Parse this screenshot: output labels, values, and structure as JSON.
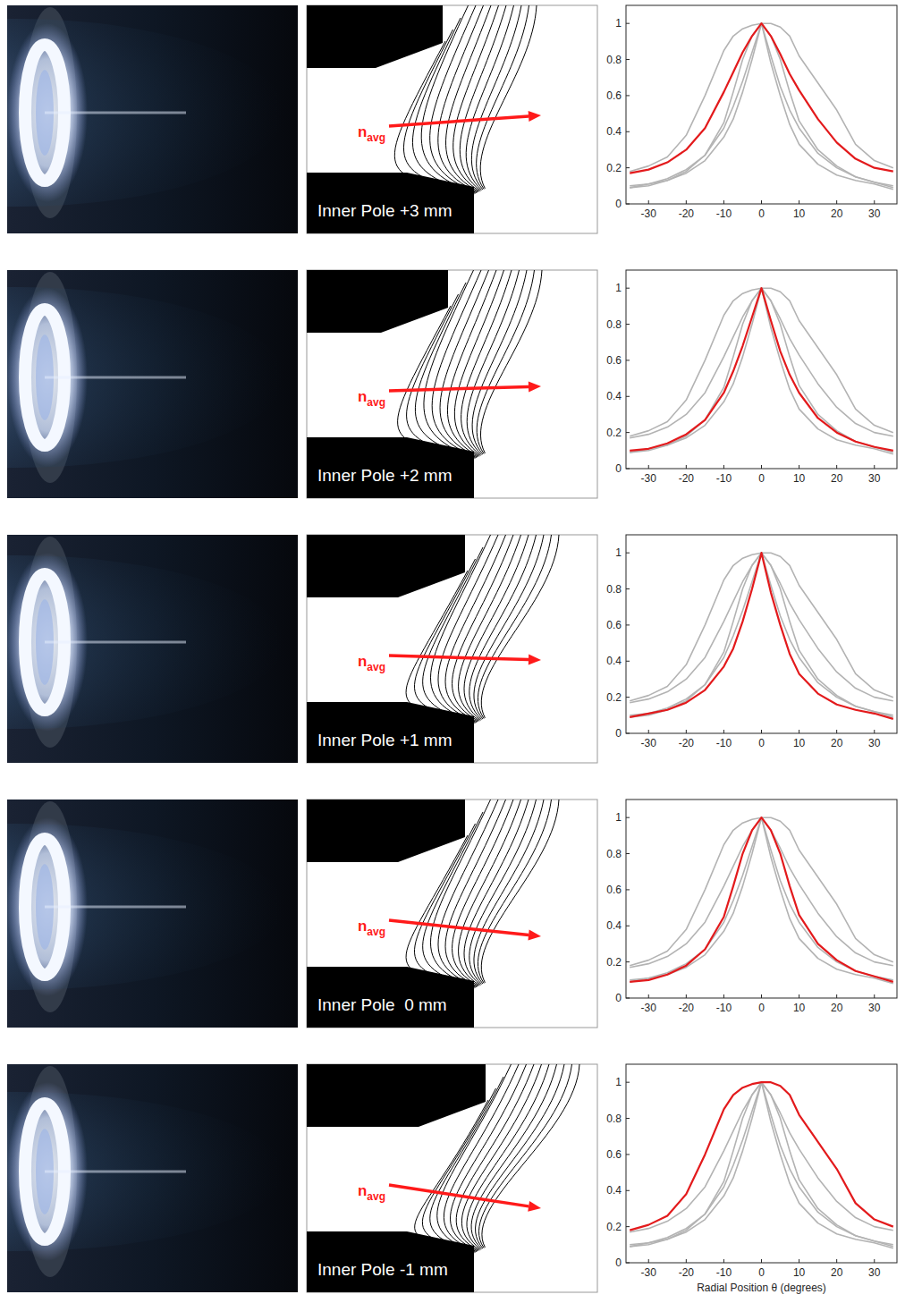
{
  "diagrams": [
    {
      "label": "Inner Pole +3 mm",
      "vector_label": {
        "base": "n",
        "subscript": "avg"
      }
    },
    {
      "label": "Inner Pole +2 mm",
      "vector_label": {
        "base": "n",
        "subscript": "avg"
      }
    },
    {
      "label": "Inner Pole +1 mm",
      "vector_label": {
        "base": "n",
        "subscript": "avg"
      }
    },
    {
      "label": "Inner Pole  0 mm",
      "vector_label": {
        "base": "n",
        "subscript": "avg"
      }
    },
    {
      "label": "Inner Pole -1 mm",
      "vector_label": {
        "base": "n",
        "subscript": "avg"
      }
    }
  ],
  "chart_data": [
    {
      "type": "line",
      "x": [
        -35,
        -30,
        -25,
        -20,
        -15,
        -10,
        -7.5,
        -5,
        -2.5,
        0,
        2.5,
        5,
        7.5,
        10,
        15,
        20,
        25,
        30,
        35
      ],
      "xlim": [
        -36,
        36
      ],
      "xticks": [
        -30,
        -20,
        -10,
        0,
        10,
        20,
        30
      ],
      "ylim": [
        0,
        1.1
      ],
      "yticks": [
        0,
        0.2,
        0.4,
        0.6,
        0.8,
        1
      ],
      "series": [
        {
          "color": "#b3b3b3",
          "values": [
            0.1,
            0.11,
            0.14,
            0.19,
            0.27,
            0.42,
            0.54,
            0.68,
            0.84,
            1,
            0.82,
            0.65,
            0.52,
            0.42,
            0.28,
            0.2,
            0.15,
            0.12,
            0.1
          ]
        },
        {
          "color": "#b3b3b3",
          "values": [
            0.09,
            0.11,
            0.13,
            0.17,
            0.24,
            0.37,
            0.47,
            0.62,
            0.8,
            1,
            0.78,
            0.6,
            0.44,
            0.33,
            0.22,
            0.16,
            0.13,
            0.11,
            0.08
          ]
        },
        {
          "color": "#b3b3b3",
          "values": [
            0.09,
            0.1,
            0.13,
            0.18,
            0.27,
            0.45,
            0.62,
            0.8,
            0.93,
            1,
            0.93,
            0.8,
            0.62,
            0.46,
            0.3,
            0.21,
            0.15,
            0.12,
            0.09
          ]
        },
        {
          "color": "#b3b3b3",
          "values": [
            0.18,
            0.21,
            0.26,
            0.38,
            0.6,
            0.85,
            0.93,
            0.97,
            0.99,
            1,
            1,
            0.98,
            0.93,
            0.82,
            0.67,
            0.52,
            0.33,
            0.24,
            0.2
          ]
        },
        {
          "color": "#e31a1c",
          "values": [
            0.17,
            0.19,
            0.23,
            0.3,
            0.42,
            0.62,
            0.73,
            0.84,
            0.93,
            1,
            0.93,
            0.83,
            0.72,
            0.63,
            0.47,
            0.34,
            0.25,
            0.2,
            0.18
          ]
        }
      ]
    },
    {
      "type": "line",
      "x": [
        -35,
        -30,
        -25,
        -20,
        -15,
        -10,
        -7.5,
        -5,
        -2.5,
        0,
        2.5,
        5,
        7.5,
        10,
        15,
        20,
        25,
        30,
        35
      ],
      "xlim": [
        -36,
        36
      ],
      "xticks": [
        -30,
        -20,
        -10,
        0,
        10,
        20,
        30
      ],
      "ylim": [
        0,
        1.1
      ],
      "yticks": [
        0,
        0.2,
        0.4,
        0.6,
        0.8,
        1
      ],
      "series": [
        {
          "color": "#b3b3b3",
          "values": [
            0.17,
            0.19,
            0.23,
            0.3,
            0.42,
            0.62,
            0.73,
            0.84,
            0.93,
            1,
            0.93,
            0.83,
            0.72,
            0.63,
            0.47,
            0.34,
            0.25,
            0.2,
            0.18
          ]
        },
        {
          "color": "#b3b3b3",
          "values": [
            0.09,
            0.11,
            0.13,
            0.17,
            0.24,
            0.37,
            0.47,
            0.62,
            0.8,
            1,
            0.78,
            0.6,
            0.44,
            0.33,
            0.22,
            0.16,
            0.13,
            0.11,
            0.08
          ]
        },
        {
          "color": "#b3b3b3",
          "values": [
            0.09,
            0.1,
            0.13,
            0.18,
            0.27,
            0.45,
            0.62,
            0.8,
            0.93,
            1,
            0.93,
            0.8,
            0.62,
            0.46,
            0.3,
            0.21,
            0.15,
            0.12,
            0.09
          ]
        },
        {
          "color": "#b3b3b3",
          "values": [
            0.18,
            0.21,
            0.26,
            0.38,
            0.6,
            0.85,
            0.93,
            0.97,
            0.99,
            1,
            1,
            0.98,
            0.93,
            0.82,
            0.67,
            0.52,
            0.33,
            0.24,
            0.2
          ]
        },
        {
          "color": "#e31a1c",
          "values": [
            0.1,
            0.11,
            0.14,
            0.19,
            0.27,
            0.42,
            0.54,
            0.68,
            0.84,
            1,
            0.82,
            0.65,
            0.52,
            0.42,
            0.28,
            0.2,
            0.15,
            0.12,
            0.1
          ]
        }
      ]
    },
    {
      "type": "line",
      "x": [
        -35,
        -30,
        -25,
        -20,
        -15,
        -10,
        -7.5,
        -5,
        -2.5,
        0,
        2.5,
        5,
        7.5,
        10,
        15,
        20,
        25,
        30,
        35
      ],
      "xlim": [
        -36,
        36
      ],
      "xticks": [
        -30,
        -20,
        -10,
        0,
        10,
        20,
        30
      ],
      "ylim": [
        0,
        1.1
      ],
      "yticks": [
        0,
        0.2,
        0.4,
        0.6,
        0.8,
        1
      ],
      "series": [
        {
          "color": "#b3b3b3",
          "values": [
            0.17,
            0.19,
            0.23,
            0.3,
            0.42,
            0.62,
            0.73,
            0.84,
            0.93,
            1,
            0.93,
            0.83,
            0.72,
            0.63,
            0.47,
            0.34,
            0.25,
            0.2,
            0.18
          ]
        },
        {
          "color": "#b3b3b3",
          "values": [
            0.1,
            0.11,
            0.14,
            0.19,
            0.27,
            0.42,
            0.54,
            0.68,
            0.84,
            1,
            0.82,
            0.65,
            0.52,
            0.42,
            0.28,
            0.2,
            0.15,
            0.12,
            0.1
          ]
        },
        {
          "color": "#b3b3b3",
          "values": [
            0.09,
            0.1,
            0.13,
            0.18,
            0.27,
            0.45,
            0.62,
            0.8,
            0.93,
            1,
            0.93,
            0.8,
            0.62,
            0.46,
            0.3,
            0.21,
            0.15,
            0.12,
            0.09
          ]
        },
        {
          "color": "#b3b3b3",
          "values": [
            0.18,
            0.21,
            0.26,
            0.38,
            0.6,
            0.85,
            0.93,
            0.97,
            0.99,
            1,
            1,
            0.98,
            0.93,
            0.82,
            0.67,
            0.52,
            0.33,
            0.24,
            0.2
          ]
        },
        {
          "color": "#e31a1c",
          "values": [
            0.09,
            0.11,
            0.13,
            0.17,
            0.24,
            0.37,
            0.47,
            0.62,
            0.8,
            1,
            0.78,
            0.6,
            0.44,
            0.33,
            0.22,
            0.16,
            0.13,
            0.11,
            0.08
          ]
        }
      ]
    },
    {
      "type": "line",
      "x": [
        -35,
        -30,
        -25,
        -20,
        -15,
        -10,
        -7.5,
        -5,
        -2.5,
        0,
        2.5,
        5,
        7.5,
        10,
        15,
        20,
        25,
        30,
        35
      ],
      "xlim": [
        -36,
        36
      ],
      "xticks": [
        -30,
        -20,
        -10,
        0,
        10,
        20,
        30
      ],
      "ylim": [
        0,
        1.1
      ],
      "yticks": [
        0,
        0.2,
        0.4,
        0.6,
        0.8,
        1
      ],
      "series": [
        {
          "color": "#b3b3b3",
          "values": [
            0.17,
            0.19,
            0.23,
            0.3,
            0.42,
            0.62,
            0.73,
            0.84,
            0.93,
            1,
            0.93,
            0.83,
            0.72,
            0.63,
            0.47,
            0.34,
            0.25,
            0.2,
            0.18
          ]
        },
        {
          "color": "#b3b3b3",
          "values": [
            0.1,
            0.11,
            0.14,
            0.19,
            0.27,
            0.42,
            0.54,
            0.68,
            0.84,
            1,
            0.82,
            0.65,
            0.52,
            0.42,
            0.28,
            0.2,
            0.15,
            0.12,
            0.1
          ]
        },
        {
          "color": "#b3b3b3",
          "values": [
            0.09,
            0.11,
            0.13,
            0.17,
            0.24,
            0.37,
            0.47,
            0.62,
            0.8,
            1,
            0.78,
            0.6,
            0.44,
            0.33,
            0.22,
            0.16,
            0.13,
            0.11,
            0.08
          ]
        },
        {
          "color": "#b3b3b3",
          "values": [
            0.18,
            0.21,
            0.26,
            0.38,
            0.6,
            0.85,
            0.93,
            0.97,
            0.99,
            1,
            1,
            0.98,
            0.93,
            0.82,
            0.67,
            0.52,
            0.33,
            0.24,
            0.2
          ]
        },
        {
          "color": "#e31a1c",
          "values": [
            0.09,
            0.1,
            0.13,
            0.18,
            0.27,
            0.45,
            0.62,
            0.8,
            0.93,
            1,
            0.93,
            0.8,
            0.62,
            0.46,
            0.3,
            0.21,
            0.15,
            0.12,
            0.09
          ]
        }
      ]
    },
    {
      "type": "line",
      "x": [
        -35,
        -30,
        -25,
        -20,
        -15,
        -10,
        -7.5,
        -5,
        -2.5,
        0,
        2.5,
        5,
        7.5,
        10,
        15,
        20,
        25,
        30,
        35
      ],
      "xlim": [
        -36,
        36
      ],
      "xticks": [
        -30,
        -20,
        -10,
        0,
        10,
        20,
        30
      ],
      "ylim": [
        0,
        1.1
      ],
      "yticks": [
        0,
        0.2,
        0.4,
        0.6,
        0.8,
        1
      ],
      "x_label": "Radial Position θ (degrees)",
      "series": [
        {
          "color": "#b3b3b3",
          "values": [
            0.17,
            0.19,
            0.23,
            0.3,
            0.42,
            0.62,
            0.73,
            0.84,
            0.93,
            1,
            0.93,
            0.83,
            0.72,
            0.63,
            0.47,
            0.34,
            0.25,
            0.2,
            0.18
          ]
        },
        {
          "color": "#b3b3b3",
          "values": [
            0.1,
            0.11,
            0.14,
            0.19,
            0.27,
            0.42,
            0.54,
            0.68,
            0.84,
            1,
            0.82,
            0.65,
            0.52,
            0.42,
            0.28,
            0.2,
            0.15,
            0.12,
            0.1
          ]
        },
        {
          "color": "#b3b3b3",
          "values": [
            0.09,
            0.11,
            0.13,
            0.17,
            0.24,
            0.37,
            0.47,
            0.62,
            0.8,
            1,
            0.78,
            0.6,
            0.44,
            0.33,
            0.22,
            0.16,
            0.13,
            0.11,
            0.08
          ]
        },
        {
          "color": "#b3b3b3",
          "values": [
            0.09,
            0.1,
            0.13,
            0.18,
            0.27,
            0.45,
            0.62,
            0.8,
            0.93,
            1,
            0.93,
            0.8,
            0.62,
            0.46,
            0.3,
            0.21,
            0.15,
            0.12,
            0.09
          ]
        },
        {
          "color": "#e31a1c",
          "values": [
            0.18,
            0.21,
            0.26,
            0.38,
            0.6,
            0.85,
            0.93,
            0.97,
            0.99,
            1,
            1,
            0.98,
            0.93,
            0.82,
            0.67,
            0.52,
            0.33,
            0.24,
            0.2
          ]
        }
      ]
    }
  ]
}
